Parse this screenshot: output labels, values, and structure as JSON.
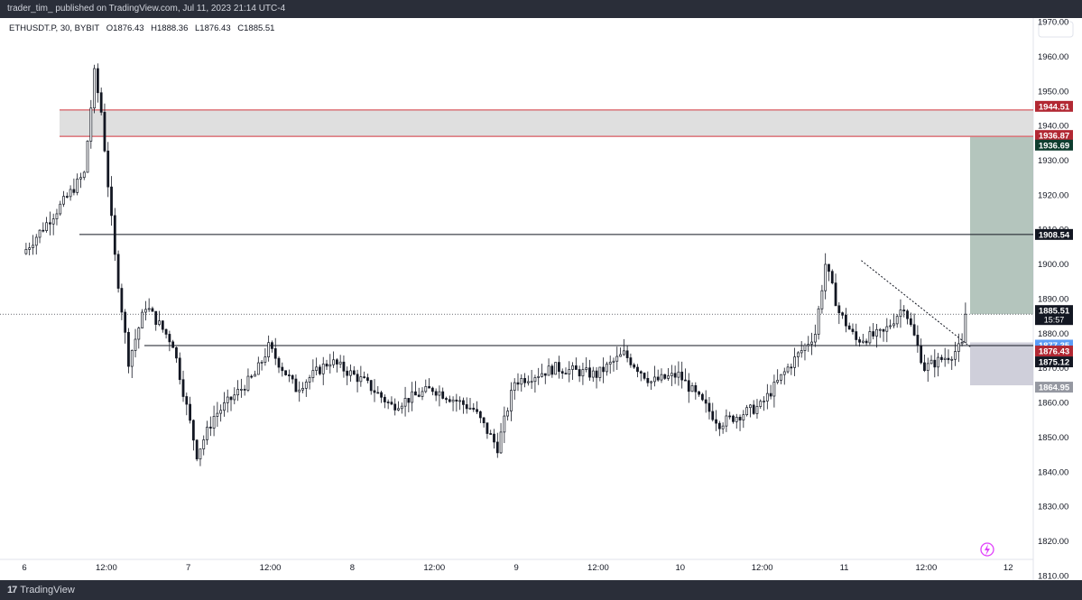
{
  "header": {
    "publish_line": "trader_tim_ published on TradingView.com, Jul 11, 2023 21:14 UTC-4"
  },
  "legend": {
    "symbol": "ETHUSDT.P, 30, BYBIT",
    "open": "O1876.43",
    "high": "H1888.36",
    "low": "L1876.43",
    "close": "C1885.51"
  },
  "footer": {
    "logo_mark": "17",
    "brand": "TradingView"
  },
  "chart_data": {
    "type": "candlestick",
    "title": "",
    "ylim": [
      1805,
      1978
    ],
    "y_ticks": [
      1810,
      1820,
      1830,
      1840,
      1850,
      1860,
      1870,
      1880,
      1890,
      1900,
      1910,
      1920,
      1930,
      1940,
      1950,
      1960,
      1970
    ],
    "x_ticks": [
      "6",
      "12:00",
      "7",
      "12:00",
      "8",
      "12:00",
      "9",
      "12:00",
      "10",
      "12:00",
      "11",
      "12:00",
      "12"
    ],
    "bar_count": 276,
    "current_price_countdown": "15:57",
    "zones": [
      {
        "name": "supply-zone",
        "from": 1936.87,
        "to": 1944.51,
        "color": "#dcdcdc"
      },
      {
        "name": "position-target",
        "from": 1885.51,
        "to": 1936.69,
        "color": "#a7bbb2"
      },
      {
        "name": "position-stop",
        "from": 1864.95,
        "to": 1877.35,
        "color": "#c7c7d3"
      }
    ],
    "horizontal_lines": [
      {
        "name": "resistance",
        "value": 1908.54
      },
      {
        "name": "support",
        "value": 1876.43
      }
    ],
    "trendline": {
      "from": [
        1901,
        "11 02:30"
      ],
      "to": [
        1876,
        "11 18:30"
      ]
    },
    "price_labels": [
      {
        "value": 1944.51,
        "text": "1944.51",
        "bg": "#b22833",
        "fg": "#ffffff"
      },
      {
        "value": 1936.87,
        "text": "1936.87",
        "bg": "#b22833",
        "fg": "#ffffff"
      },
      {
        "value": 1936.69,
        "text": "1936.69",
        "bg": "#0f3d2f",
        "fg": "#ffffff"
      },
      {
        "value": 1908.54,
        "text": "1908.54",
        "bg": "#131722",
        "fg": "#ffffff"
      },
      {
        "value": 1885.51,
        "text": "1885.51",
        "bg": "#131722",
        "fg": "#ffffff"
      },
      {
        "value": 1877.35,
        "text": "1877.35",
        "bg": "#5b9cf6",
        "fg": "#ffffff"
      },
      {
        "value": 1876.43,
        "text": "1876.43",
        "bg": "#b22833",
        "fg": "#ffffff"
      },
      {
        "value": 1875.12,
        "text": "1875.12",
        "bg": "#131722",
        "fg": "#ffffff"
      },
      {
        "value": 1864.95,
        "text": "1864.95",
        "bg": "#9598a1",
        "fg": "#ffffff"
      }
    ],
    "key_points": [
      {
        "time": "6 00:00",
        "price": 1903
      },
      {
        "time": "6 06:00",
        "price": 1918
      },
      {
        "time": "6 09:00",
        "price": 1926
      },
      {
        "time": "6 10:30",
        "price": 1955
      },
      {
        "time": "6 11:30",
        "price": 1944
      },
      {
        "time": "6 13:30",
        "price": 1902
      },
      {
        "time": "6 15:30",
        "price": 1872
      },
      {
        "time": "6 18:00",
        "price": 1888
      },
      {
        "time": "6 22:00",
        "price": 1877
      },
      {
        "time": "7 01:30",
        "price": 1845
      },
      {
        "time": "7 04:00",
        "price": 1856
      },
      {
        "time": "7 10:00",
        "price": 1868
      },
      {
        "time": "7 12:00",
        "price": 1876
      },
      {
        "time": "7 16:00",
        "price": 1864
      },
      {
        "time": "7 21:00",
        "price": 1872
      },
      {
        "time": "8 02:00",
        "price": 1866
      },
      {
        "time": "8 06:00",
        "price": 1859
      },
      {
        "time": "8 12:00",
        "price": 1864
      },
      {
        "time": "8 18:00",
        "price": 1858
      },
      {
        "time": "8 21:30",
        "price": 1847
      },
      {
        "time": "9 00:00",
        "price": 1866
      },
      {
        "time": "9 06:00",
        "price": 1870
      },
      {
        "time": "9 12:00",
        "price": 1868
      },
      {
        "time": "9 16:00",
        "price": 1874
      },
      {
        "time": "9 20:00",
        "price": 1866
      },
      {
        "time": "10 00:00",
        "price": 1868
      },
      {
        "time": "10 06:00",
        "price": 1854
      },
      {
        "time": "10 12:00",
        "price": 1859
      },
      {
        "time": "10 16:00",
        "price": 1870
      },
      {
        "time": "10 20:00",
        "price": 1880
      },
      {
        "time": "10 21:30",
        "price": 1900
      },
      {
        "time": "10 23:30",
        "price": 1886
      },
      {
        "time": "11 02:00",
        "price": 1878
      },
      {
        "time": "11 06:00",
        "price": 1880
      },
      {
        "time": "11 09:00",
        "price": 1888
      },
      {
        "time": "11 12:00",
        "price": 1870
      },
      {
        "time": "11 16:00",
        "price": 1874
      },
      {
        "time": "11 18:30",
        "price": 1878
      },
      {
        "time": "11 20:30",
        "price": 1885.51
      }
    ]
  }
}
